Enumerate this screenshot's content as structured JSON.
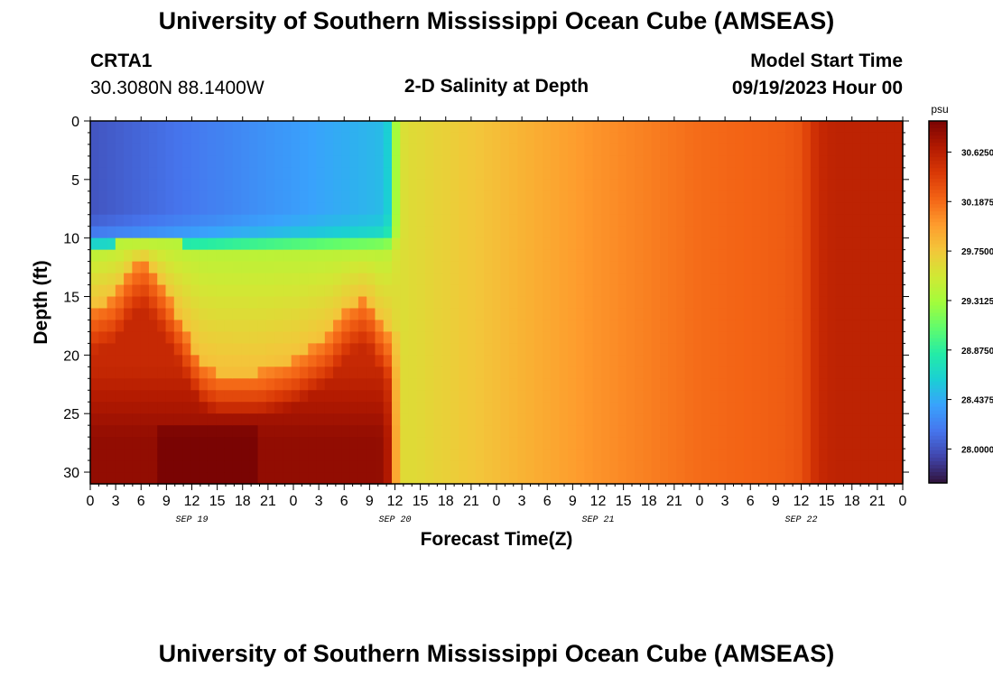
{
  "header": {
    "title": "University of Southern Mississippi Ocean Cube (AMSEAS)",
    "station_id": "CRTA1",
    "station_coords": "30.3080N  88.1400W",
    "plot_title": "2-D Salinity at Depth",
    "model_start_label": "Model Start Time",
    "model_start_value": "09/19/2023 Hour 00"
  },
  "footer": {
    "title": "University of Southern Mississippi Ocean Cube (AMSEAS)"
  },
  "chart_data": {
    "type": "heatmap",
    "variable": "salinity",
    "unit": "psu",
    "xlabel": "Forecast Time(Z)",
    "ylabel": "Depth (ft)",
    "x_tick_labels": [
      "0",
      "3",
      "6",
      "9",
      "12",
      "15",
      "18",
      "21",
      "0",
      "3",
      "6",
      "9",
      "12",
      "15",
      "18",
      "21",
      "0",
      "3",
      "6",
      "9",
      "12",
      "15",
      "18",
      "21",
      "0",
      "3",
      "6",
      "9",
      "12",
      "15",
      "18",
      "21",
      "0"
    ],
    "x_range_hours": [
      0,
      96
    ],
    "date_labels": [
      {
        "label": "SEP 19",
        "hour": 12
      },
      {
        "label": "SEP 20",
        "hour": 36
      },
      {
        "label": "SEP 21",
        "hour": 60
      },
      {
        "label": "SEP 22",
        "hour": 84
      }
    ],
    "y_ticks": [
      0,
      5,
      10,
      15,
      20,
      25,
      30
    ],
    "y_range_ft": [
      0,
      31
    ],
    "y_inverted": true,
    "colorbar": {
      "labels": [
        "30.6250",
        "30.1875",
        "29.7500",
        "29.3125",
        "28.8750",
        "28.4375",
        "28.0000"
      ],
      "min": 27.7,
      "max": 30.9,
      "colormap": [
        "#30123b",
        "#4145ab",
        "#4675ed",
        "#39a2fc",
        "#1bcfd4",
        "#24eca6",
        "#61fc6c",
        "#a4fc3b",
        "#d1e834",
        "#f3c63a",
        "#fe9b2d",
        "#f36315",
        "#d93806",
        "#b11901",
        "#7a0403"
      ]
    },
    "description": "Low salinity (about 28.0-28.9 psu) in upper 0-11 ft from Sep 19 00Z to Sep 20 10Z; high salinity (about 30.5-30.9 psu) below ~17-22 ft during that period with a rising tongue near hour 6 and hour 33; after Sep 20 11Z the column is well mixed, rising from about 29.6 psu to about 30.4 psu by Sep 22 18Z."
  }
}
